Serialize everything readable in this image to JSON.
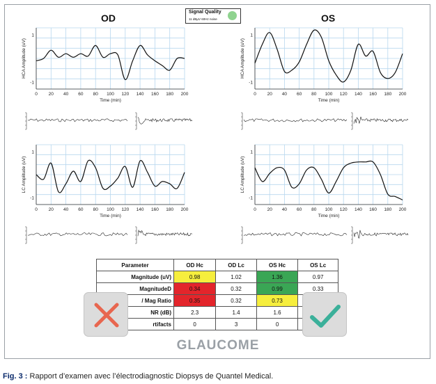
{
  "eyes": {
    "od": "OD",
    "os": "OS"
  },
  "signal_quality": {
    "title": "Signal Quality",
    "detail": "11 dBµV 60Hz noise",
    "color": "#8fd38f"
  },
  "axes": {
    "hc_ylabel": "HCA Amplitude (uV)",
    "lc_ylabel": "LC Amplitude (uV)",
    "xlabel": "Time (min)"
  },
  "chart_data": [
    {
      "type": "line",
      "name": "od-hc",
      "xlabel": "Time (min)",
      "ylabel": "HCA Amplitude (uV)",
      "xlim": [
        0,
        200
      ],
      "ylim": [
        -1.3,
        1.3
      ],
      "xticks": [
        0,
        20,
        40,
        60,
        80,
        100,
        120,
        140,
        160,
        180,
        200
      ],
      "yticks": [
        -1,
        1
      ],
      "x": [
        0,
        10,
        20,
        30,
        40,
        50,
        60,
        70,
        80,
        90,
        100,
        110,
        120,
        130,
        140,
        150,
        160,
        170,
        180,
        190,
        200
      ],
      "y": [
        -0.1,
        0.0,
        0.35,
        0.05,
        0.2,
        0.05,
        0.2,
        0.1,
        0.55,
        0.05,
        0.2,
        0.15,
        -0.9,
        -0.1,
        0.55,
        0.15,
        -0.1,
        -0.3,
        -0.5,
        0.0,
        0.0
      ]
    },
    {
      "type": "line",
      "name": "os-hc",
      "xlabel": "Time (min)",
      "ylabel": "HCA Amplitude (uV)",
      "xlim": [
        0,
        200
      ],
      "ylim": [
        -1.3,
        1.3
      ],
      "xticks": [
        0,
        20,
        40,
        60,
        80,
        100,
        120,
        140,
        160,
        180,
        200
      ],
      "yticks": [
        -1,
        1
      ],
      "x": [
        0,
        10,
        20,
        30,
        40,
        50,
        60,
        70,
        80,
        90,
        100,
        110,
        120,
        130,
        140,
        150,
        160,
        170,
        180,
        190,
        200
      ],
      "y": [
        -0.2,
        0.6,
        1.1,
        0.4,
        -0.55,
        -0.5,
        -0.15,
        0.6,
        1.2,
        0.9,
        -0.1,
        -0.7,
        -1.0,
        -0.5,
        0.6,
        0.1,
        0.3,
        -0.6,
        -0.85,
        -0.6,
        0.2
      ]
    },
    {
      "type": "line",
      "name": "od-lc",
      "xlabel": "Time (min)",
      "ylabel": "LC Amplitude (uV)",
      "xlim": [
        0,
        200
      ],
      "ylim": [
        -1.3,
        1.3
      ],
      "xticks": [
        0,
        20,
        40,
        60,
        80,
        100,
        120,
        140,
        160,
        180,
        200
      ],
      "yticks": [
        -1,
        1
      ],
      "x": [
        0,
        10,
        20,
        30,
        40,
        50,
        60,
        70,
        80,
        90,
        100,
        110,
        120,
        130,
        140,
        150,
        160,
        170,
        180,
        190,
        200
      ],
      "y": [
        0.0,
        -0.2,
        0.5,
        -0.75,
        -0.4,
        0.15,
        -0.3,
        0.6,
        0.3,
        -0.6,
        -0.5,
        -0.15,
        0.35,
        -0.55,
        0.6,
        0.1,
        -0.5,
        -0.3,
        -0.4,
        -0.6,
        0.1
      ]
    },
    {
      "type": "line",
      "name": "os-lc",
      "xlabel": "Time (min)",
      "ylabel": "LC Amplitude (uV)",
      "xlim": [
        0,
        200
      ],
      "ylim": [
        -1.3,
        1.3
      ],
      "xticks": [
        0,
        20,
        40,
        60,
        80,
        100,
        120,
        140,
        160,
        180,
        200
      ],
      "yticks": [
        -1,
        1
      ],
      "x": [
        0,
        10,
        20,
        30,
        40,
        50,
        60,
        70,
        80,
        90,
        100,
        110,
        120,
        130,
        140,
        150,
        160,
        170,
        180,
        190,
        200
      ],
      "y": [
        0.3,
        -0.3,
        0.05,
        0.3,
        0.2,
        -0.55,
        -0.4,
        0.2,
        0.3,
        -0.2,
        -0.8,
        -0.3,
        0.3,
        0.5,
        0.55,
        0.55,
        0.55,
        0.0,
        -0.85,
        -0.95,
        -1.1
      ]
    }
  ],
  "table": {
    "headers": [
      "Parameter",
      "OD Hc",
      "OD Lc",
      "OS Hc",
      "OS Lc"
    ],
    "rows": [
      {
        "label": "Magnitude (uV)",
        "cells": [
          "0.98",
          "1.02",
          "1.36",
          "0.97"
        ],
        "colors": [
          "#f6ee3d",
          "",
          "#3aa655",
          ""
        ]
      },
      {
        "label": "MagnitudeD",
        "cells": [
          "0.34",
          "0.32",
          "0.99",
          "0.33"
        ],
        "colors": [
          "#e3252b",
          "",
          "#3aa655",
          ""
        ]
      },
      {
        "label": "/ Mag Ratio",
        "cells": [
          "0.35",
          "0.32",
          "0.73",
          ""
        ],
        "colors": [
          "#e3252b",
          "",
          "#f6ee3d",
          ""
        ]
      },
      {
        "label": "NR (dB)",
        "cells": [
          "2.3",
          "1.4",
          "1.6",
          ""
        ],
        "colors": [
          "",
          "",
          "",
          ""
        ]
      },
      {
        "label": "rtifacts",
        "cells": [
          "0",
          "3",
          "0",
          ""
        ],
        "colors": [
          "",
          "",
          "",
          ""
        ]
      }
    ]
  },
  "verdict": "GLAUCOME",
  "caption": {
    "label": "Fig. 3 :",
    "text": " Rapport d’examen avec l’électrodiagnostic Diopsys de Quantel Medical."
  },
  "colors": {
    "grid": "#b7d7ee",
    "cross": "#e8664f",
    "check": "#3bb09a",
    "badge_bg": "#dcdcdc"
  }
}
